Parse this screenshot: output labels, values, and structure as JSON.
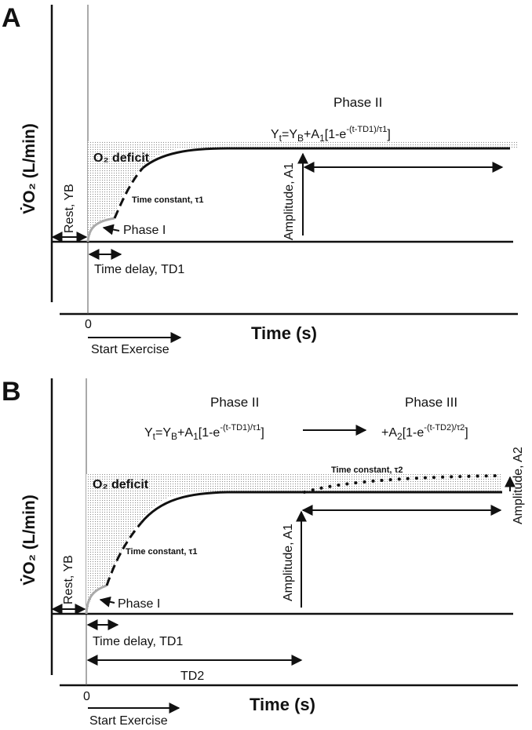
{
  "panels": [
    {
      "letter": "A",
      "y_label": "V̇O₂ (L/min)",
      "x_label": "Time (s)",
      "zero": "0",
      "start_exercise": "Start Exercise",
      "phase_ii": "Phase II",
      "equation": "Yt=YB+A1[1-e-(t-TD1)/τ1]",
      "o2_deficit": "O₂ deficit",
      "time_constant_1": "Time constant, τ1",
      "rest": "Rest, YB",
      "phase_i": "Phase I",
      "amplitude_1": "Amplitude, A1",
      "time_delay_1": "Time delay, TD1"
    },
    {
      "letter": "B",
      "y_label": "V̇O₂ (L/min)",
      "x_label": "Time (s)",
      "zero": "0",
      "start_exercise": "Start Exercise",
      "phase_ii": "Phase II",
      "phase_iii": "Phase III",
      "equation": "Yt=YB+A1[1-e-(t-TD1)/τ1]",
      "equation_2": "+A2[1-e-(t-TD2)/τ2]",
      "o2_deficit": "O₂ deficit",
      "time_constant_1": "Time constant, τ1",
      "time_constant_2": "Time constant, τ2",
      "rest": "Rest, YB",
      "phase_i": "Phase I",
      "amplitude_1": "Amplitude, A1",
      "amplitude_2": "Amplitude, A2",
      "time_delay_1": "Time delay, TD1",
      "time_delay_2": "TD2"
    }
  ]
}
